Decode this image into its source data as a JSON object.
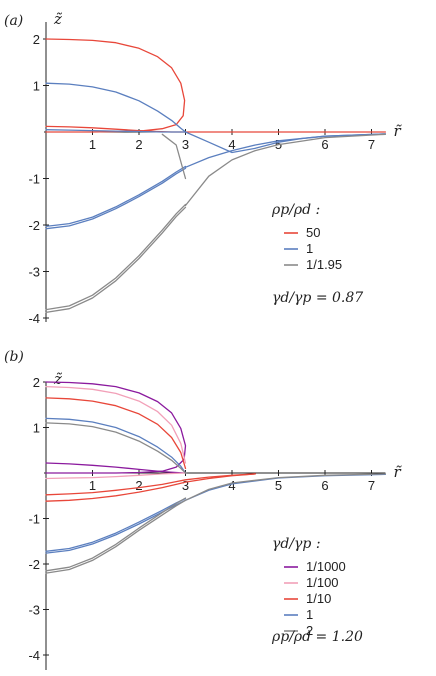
{
  "chart_data": [
    {
      "type": "line",
      "panel_label": "(a)",
      "xlabel": "r̃",
      "ylabel": "z̃",
      "xlim": [
        0,
        7.3
      ],
      "ylim": [
        -4.2,
        2.3
      ],
      "xticks": [
        "1",
        "2",
        "3",
        "4",
        "5",
        "6",
        "7"
      ],
      "yticks": [
        "-4",
        "-3",
        "-2",
        "-1",
        "1",
        "2"
      ],
      "legend_title": "ρp/ρd :",
      "annotation": "γd/γp = 0.87",
      "legend_position": "right",
      "series": [
        {
          "name": "50",
          "color": "#e8473a",
          "curves": [
            {
              "x": [
                0,
                0.5,
                1.0,
                1.5,
                2.0,
                2.4,
                2.7,
                2.9,
                2.98,
                2.95,
                2.8,
                2.5,
                2.1,
                1.6,
                1.0,
                0.5,
                0
              ],
              "y": [
                2.0,
                1.99,
                1.97,
                1.92,
                1.8,
                1.62,
                1.38,
                1.05,
                0.68,
                0.35,
                0.16,
                0.07,
                0.03,
                0.01,
                0.0,
                0.0,
                0.0
              ]
            },
            {
              "x": [
                0,
                0.5,
                1.0,
                1.5,
                2.0,
                2.4,
                2.7,
                2.9
              ],
              "y": [
                0.12,
                0.11,
                0.09,
                0.06,
                0.03,
                0.01,
                0.0,
                0.0
              ]
            },
            {
              "x": [
                2.9,
                3.5,
                4.5,
                5.5,
                6.5,
                7.3
              ],
              "y": [
                0.0,
                0.0,
                0.0,
                0.0,
                0.0,
                0.0
              ]
            }
          ]
        },
        {
          "name": "1",
          "color": "#5b7fbf",
          "curves": [
            {
              "x": [
                0,
                0.5,
                1.0,
                1.5,
                2.0,
                2.4,
                2.7,
                2.9,
                3.0
              ],
              "y": [
                1.05,
                1.03,
                0.97,
                0.86,
                0.67,
                0.45,
                0.25,
                0.08,
                0.0
              ]
            },
            {
              "x": [
                0,
                0.5,
                1.0,
                1.5,
                2.0,
                2.5,
                2.8,
                3.0
              ],
              "y": [
                0.05,
                0.04,
                0.03,
                0.02,
                0.01,
                0.0,
                0.0,
                0.0
              ]
            },
            {
              "x": [
                0,
                0.5,
                1.0,
                1.5,
                2.0,
                2.5,
                2.8,
                3.0
              ],
              "y": [
                -2.08,
                -2.02,
                -1.87,
                -1.65,
                -1.39,
                -1.1,
                -0.9,
                -0.78
              ]
            },
            {
              "x": [
                0,
                0.5,
                1.0,
                1.5,
                2.0,
                2.5,
                2.8,
                3.0
              ],
              "y": [
                -2.03,
                -1.97,
                -1.83,
                -1.61,
                -1.35,
                -1.06,
                -0.86,
                -0.74
              ]
            },
            {
              "x": [
                3.0,
                3.5,
                4.0,
                4.5,
                5.0,
                5.5,
                6.0,
                7.3
              ],
              "y": [
                0.0,
                -0.22,
                -0.44,
                -0.35,
                -0.22,
                -0.14,
                -0.09,
                -0.04
              ]
            },
            {
              "x": [
                3.0,
                3.5,
                4.0,
                4.5,
                5.0,
                6.0,
                7.3
              ],
              "y": [
                -0.76,
                -0.55,
                -0.4,
                -0.28,
                -0.19,
                -0.09,
                -0.04
              ]
            }
          ]
        },
        {
          "name": "1/1.95",
          "color": "#8a8a8a",
          "curves": [
            {
              "x": [
                0,
                0.5,
                1.0,
                1.5,
                2.0,
                2.5,
                2.8,
                3.0
              ],
              "y": [
                -3.88,
                -3.8,
                -3.57,
                -3.2,
                -2.72,
                -2.17,
                -1.82,
                -1.62
              ]
            },
            {
              "x": [
                0,
                0.5,
                1.0,
                1.5,
                2.0,
                2.5,
                2.8,
                3.0
              ],
              "y": [
                -3.82,
                -3.74,
                -3.51,
                -3.14,
                -2.66,
                -2.11,
                -1.76,
                -1.56
              ]
            },
            {
              "x": [
                2.5,
                2.8,
                3.0
              ],
              "y": [
                -0.05,
                -0.28,
                -1.0
              ]
            },
            {
              "x": [
                3.0,
                3.5,
                4.0,
                4.5,
                5.0,
                6.0,
                7.3
              ],
              "y": [
                -1.58,
                -0.95,
                -0.6,
                -0.4,
                -0.27,
                -0.12,
                -0.05
              ]
            }
          ]
        }
      ]
    },
    {
      "type": "line",
      "panel_label": "(b)",
      "xlabel": "r̃",
      "ylabel": "z̃",
      "xlim": [
        0,
        7.3
      ],
      "ylim": [
        -4.3,
        2.1
      ],
      "xticks": [
        "1",
        "2",
        "3",
        "4",
        "5",
        "6",
        "7"
      ],
      "yticks": [
        "-4",
        "-3",
        "-2",
        "-1",
        "1",
        "2"
      ],
      "legend_title": "γd/γp :",
      "annotation": "ρp/ρd = 1.20",
      "legend_position": "right",
      "series": [
        {
          "name": "1/1000",
          "color": "#8b1a9e",
          "curves": [
            {
              "x": [
                0,
                0.5,
                1.0,
                1.5,
                2.0,
                2.4,
                2.7,
                2.9,
                3.0,
                2.97,
                2.8,
                2.5,
                2.0,
                1.5,
                1.0,
                0.5,
                0
              ],
              "y": [
                2.0,
                1.99,
                1.96,
                1.9,
                1.76,
                1.57,
                1.32,
                0.98,
                0.6,
                0.3,
                0.13,
                0.04,
                0.01,
                0.0,
                0.0,
                0.0,
                0.0
              ]
            },
            {
              "x": [
                0,
                0.5,
                1.0,
                1.5,
                2.0,
                2.5,
                2.8,
                3.0
              ],
              "y": [
                0.22,
                0.2,
                0.17,
                0.13,
                0.08,
                0.03,
                0.01,
                0.0
              ]
            }
          ]
        },
        {
          "name": "1/100",
          "color": "#f2a0b8",
          "curves": [
            {
              "x": [
                0,
                0.5,
                1.0,
                1.5,
                2.0,
                2.4,
                2.7,
                2.9,
                3.0
              ],
              "y": [
                1.9,
                1.88,
                1.84,
                1.75,
                1.58,
                1.35,
                1.05,
                0.65,
                0.22
              ]
            },
            {
              "x": [
                0,
                0.5,
                1.0,
                1.5,
                2.0,
                2.5,
                3.0
              ],
              "y": [
                -0.12,
                -0.11,
                -0.1,
                -0.08,
                -0.05,
                -0.02,
                0.0
              ]
            }
          ]
        },
        {
          "name": "1/10",
          "color": "#e8473a",
          "curves": [
            {
              "x": [
                0,
                0.5,
                1.0,
                1.5,
                2.0,
                2.4,
                2.7,
                2.9,
                3.0
              ],
              "y": [
                1.65,
                1.63,
                1.58,
                1.48,
                1.3,
                1.07,
                0.78,
                0.45,
                0.1
              ]
            },
            {
              "x": [
                0,
                0.5,
                1.0,
                1.5,
                2.0,
                2.5,
                2.8,
                3.0,
                3.5,
                4.0,
                4.5
              ],
              "y": [
                -0.62,
                -0.6,
                -0.56,
                -0.5,
                -0.42,
                -0.32,
                -0.25,
                -0.2,
                -0.12,
                -0.06,
                -0.02
              ]
            },
            {
              "x": [
                0,
                0.5,
                1.0,
                1.5,
                2.0,
                2.5,
                2.8,
                3.0,
                3.5,
                4.0,
                4.5
              ],
              "y": [
                -0.48,
                -0.46,
                -0.43,
                -0.38,
                -0.32,
                -0.25,
                -0.19,
                -0.15,
                -0.09,
                -0.05,
                -0.02
              ]
            }
          ]
        },
        {
          "name": "1",
          "color": "#5b7fbf",
          "curves": [
            {
              "x": [
                0,
                0.5,
                1.0,
                1.5,
                2.0,
                2.4,
                2.7,
                2.9,
                3.0
              ],
              "y": [
                1.2,
                1.18,
                1.12,
                1.0,
                0.8,
                0.57,
                0.35,
                0.15,
                0.0
              ]
            },
            {
              "x": [
                0,
                0.5,
                1.0,
                1.5,
                2.0,
                2.5,
                2.8,
                3.0,
                3.5,
                4.0,
                5.0,
                6.0,
                7.3
              ],
              "y": [
                -1.76,
                -1.7,
                -1.56,
                -1.36,
                -1.12,
                -0.86,
                -0.7,
                -0.6,
                -0.38,
                -0.24,
                -0.11,
                -0.06,
                -0.03
              ]
            },
            {
              "x": [
                0,
                0.5,
                1.0,
                1.5,
                2.0,
                2.5,
                2.8,
                3.0
              ],
              "y": [
                -1.72,
                -1.66,
                -1.52,
                -1.32,
                -1.08,
                -0.82,
                -0.66,
                -0.56
              ]
            }
          ]
        },
        {
          "name": "2",
          "color": "#8a8a8a",
          "curves": [
            {
              "x": [
                0,
                0.5,
                1.0,
                1.5,
                2.0,
                2.4,
                2.7,
                2.9,
                3.0
              ],
              "y": [
                1.1,
                1.08,
                1.02,
                0.9,
                0.7,
                0.48,
                0.28,
                0.1,
                0.0
              ]
            },
            {
              "x": [
                0,
                0.5,
                1.0,
                1.5,
                2.0,
                2.5,
                2.8,
                3.0,
                3.5,
                4.0,
                5.0,
                6.0,
                7.3
              ],
              "y": [
                -2.2,
                -2.12,
                -1.92,
                -1.62,
                -1.26,
                -0.92,
                -0.72,
                -0.6,
                -0.36,
                -0.22,
                -0.1,
                -0.05,
                -0.02
              ]
            },
            {
              "x": [
                0,
                0.5,
                1.0,
                1.5,
                2.0,
                2.5,
                2.8,
                3.0
              ],
              "y": [
                -2.15,
                -2.07,
                -1.87,
                -1.57,
                -1.21,
                -0.87,
                -0.67,
                -0.55
              ]
            }
          ]
        }
      ]
    }
  ]
}
